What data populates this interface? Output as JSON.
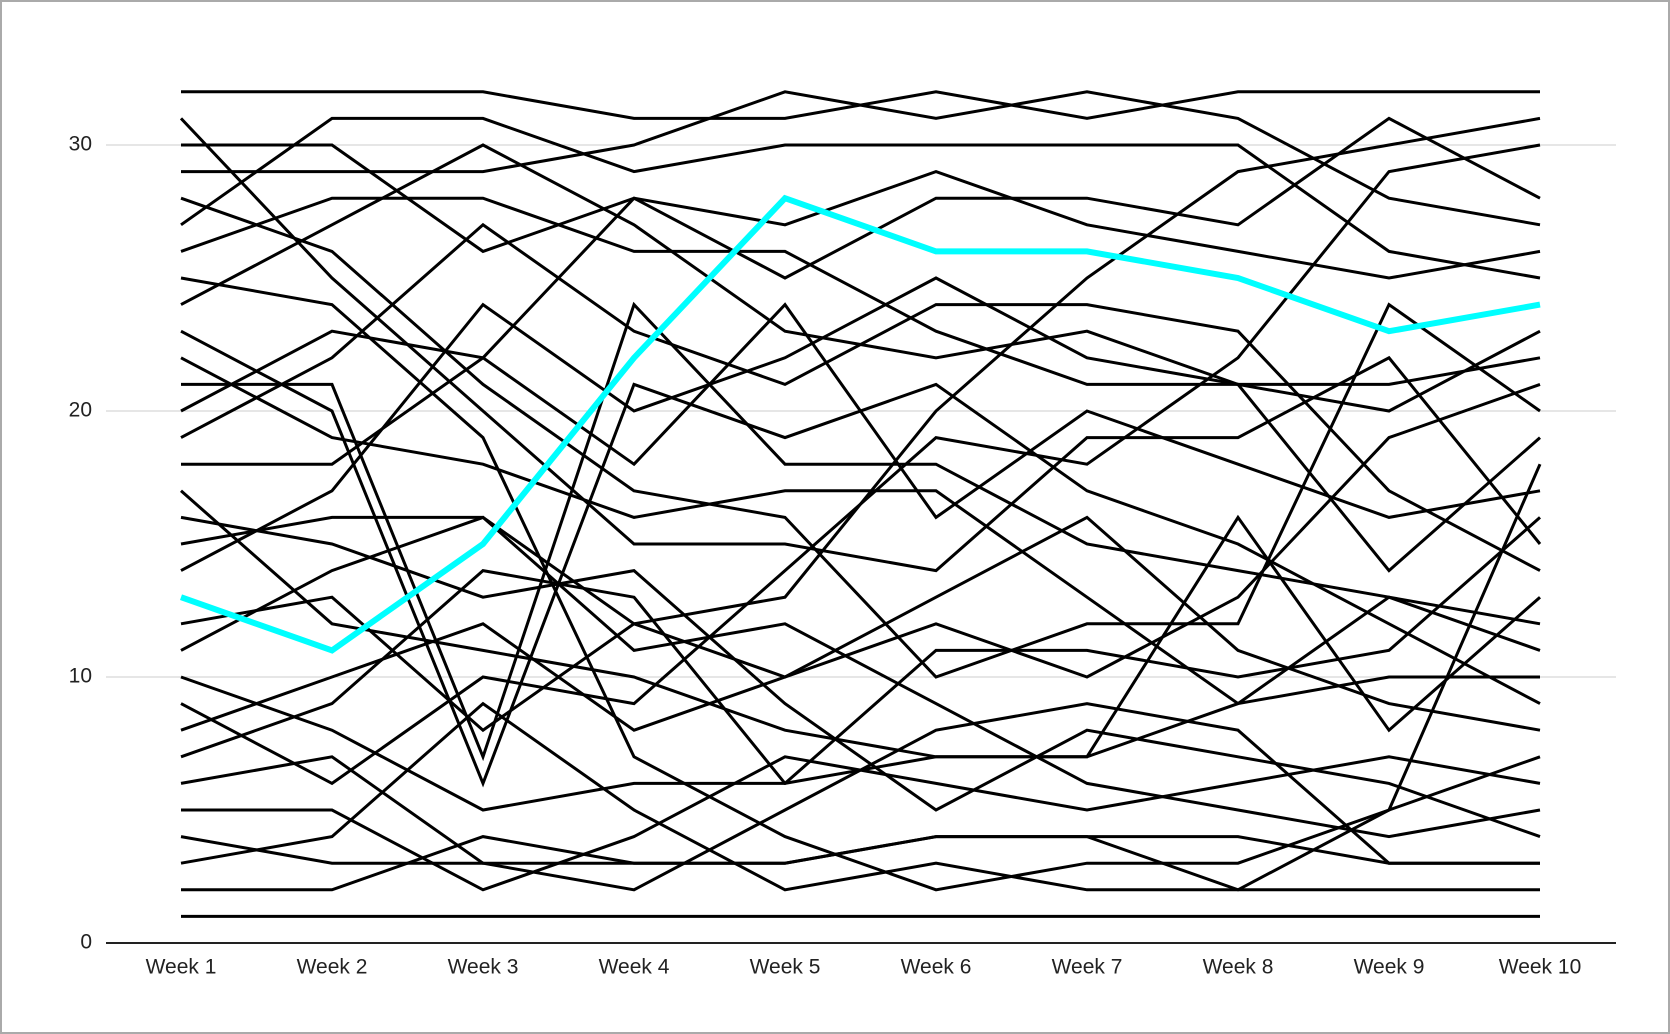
{
  "chart_data": {
    "type": "line",
    "categories": [
      "Week 1",
      "Week 2",
      "Week 3",
      "Week 4",
      "Week 5",
      "Week 6",
      "Week 7",
      "Week 8",
      "Week 9",
      "Week 10"
    ],
    "ylim": [
      0,
      35
    ],
    "yticks": [
      0,
      10,
      20,
      30
    ],
    "grid": true,
    "series": [
      {
        "color": "#000000",
        "values": [
          1,
          1,
          1,
          1,
          1,
          1,
          1,
          1,
          1,
          1
        ]
      },
      {
        "color": "#000000",
        "values": [
          2,
          2,
          4,
          3,
          3,
          4,
          4,
          4,
          3,
          3
        ]
      },
      {
        "color": "#000000",
        "values": [
          3,
          4,
          9,
          5,
          2,
          3,
          2,
          2,
          2,
          2
        ]
      },
      {
        "color": "#000000",
        "values": [
          4,
          3,
          3,
          2,
          5,
          8,
          9,
          8,
          3,
          3
        ]
      },
      {
        "color": "#000000",
        "values": [
          5,
          5,
          2,
          4,
          7,
          6,
          5,
          6,
          7,
          6
        ]
      },
      {
        "color": "#000000",
        "values": [
          6,
          7,
          3,
          3,
          3,
          4,
          4,
          2,
          5,
          7
        ]
      },
      {
        "color": "#000000",
        "values": [
          7,
          9,
          14,
          13,
          6,
          7,
          7,
          9,
          13,
          12
        ]
      },
      {
        "color": "#000000",
        "values": [
          8,
          10,
          12,
          8,
          10,
          13,
          16,
          11,
          9,
          8
        ]
      },
      {
        "color": "#000000",
        "values": [
          9,
          6,
          10,
          9,
          14,
          19,
          18,
          22,
          29,
          30
        ]
      },
      {
        "color": "#000000",
        "values": [
          10,
          8,
          5,
          6,
          6,
          11,
          11,
          10,
          11,
          16
        ]
      },
      {
        "color": "#000000",
        "values": [
          11,
          14,
          16,
          12,
          13,
          20,
          25,
          29,
          30,
          31
        ]
      },
      {
        "color": "#000000",
        "values": [
          12,
          13,
          8,
          12,
          10,
          12,
          10,
          13,
          19,
          21
        ]
      },
      {
        "color": "#000000",
        "values": [
          14,
          17,
          24,
          20,
          22,
          25,
          22,
          21,
          20,
          23
        ]
      },
      {
        "color": "#000000",
        "values": [
          15,
          16,
          16,
          11,
          12,
          9,
          6,
          5,
          4,
          5
        ]
      },
      {
        "color": "#000000",
        "values": [
          16,
          15,
          13,
          14,
          9,
          5,
          8,
          7,
          6,
          4
        ]
      },
      {
        "color": "#000000",
        "values": [
          17,
          12,
          11,
          10,
          8,
          7,
          7,
          16,
          8,
          13
        ]
      },
      {
        "color": "#000000",
        "values": [
          18,
          18,
          22,
          28,
          27,
          29,
          27,
          26,
          25,
          26
        ]
      },
      {
        "color": "#000000",
        "values": [
          19,
          22,
          27,
          23,
          21,
          24,
          24,
          23,
          17,
          14
        ]
      },
      {
        "color": "#000000",
        "values": [
          20,
          23,
          22,
          18,
          24,
          16,
          20,
          18,
          16,
          17
        ]
      },
      {
        "color": "#000000",
        "values": [
          21,
          21,
          7,
          24,
          18,
          18,
          15,
          14,
          13,
          11
        ]
      },
      {
        "color": "#000000",
        "values": [
          22,
          19,
          18,
          16,
          17,
          17,
          13,
          9,
          10,
          10
        ]
      },
      {
        "color": "#000000",
        "values": [
          23,
          20,
          6,
          21,
          19,
          21,
          17,
          15,
          12,
          9
        ]
      },
      {
        "color": "#000000",
        "values": [
          24,
          27,
          30,
          27,
          23,
          22,
          23,
          21,
          14,
          19
        ]
      },
      {
        "color": "#000000",
        "values": [
          25,
          24,
          19,
          7,
          4,
          2,
          3,
          3,
          5,
          18
        ]
      },
      {
        "color": "#000000",
        "values": [
          26,
          28,
          28,
          26,
          26,
          23,
          21,
          21,
          21,
          22
        ]
      },
      {
        "color": "#000000",
        "values": [
          27,
          31,
          31,
          29,
          30,
          30,
          30,
          30,
          26,
          25
        ]
      },
      {
        "color": "#000000",
        "values": [
          28,
          26,
          21,
          17,
          16,
          10,
          12,
          12,
          24,
          20
        ]
      },
      {
        "color": "#000000",
        "values": [
          29,
          29,
          29,
          30,
          32,
          31,
          32,
          31,
          28,
          27
        ]
      },
      {
        "color": "#000000",
        "values": [
          30,
          30,
          26,
          28,
          25,
          28,
          28,
          27,
          31,
          28
        ]
      },
      {
        "color": "#000000",
        "values": [
          31,
          25,
          20,
          15,
          15,
          14,
          19,
          19,
          22,
          15
        ]
      },
      {
        "color": "#000000",
        "values": [
          32,
          32,
          32,
          31,
          31,
          32,
          31,
          32,
          32,
          32
        ]
      },
      {
        "color": "#00ffff",
        "values": [
          13,
          11,
          15,
          22,
          28,
          26,
          26,
          25,
          23,
          24
        ]
      }
    ]
  }
}
